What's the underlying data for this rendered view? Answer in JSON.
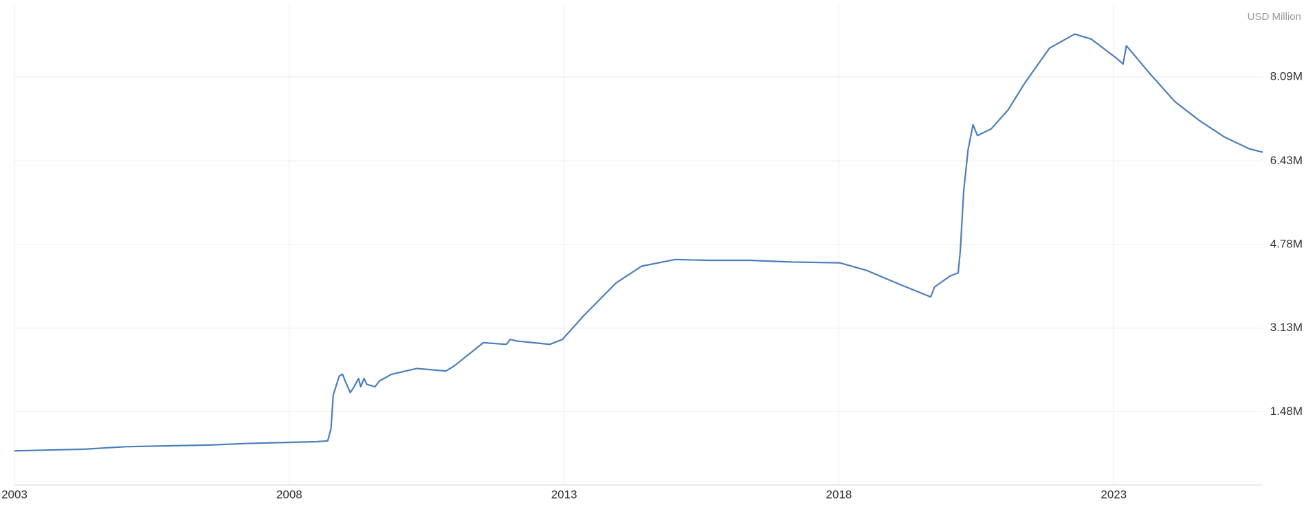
{
  "chart_data": {
    "type": "line",
    "y_unit": "USD Million",
    "x": [
      2003.0,
      2004.26,
      2005.02,
      2006.53,
      2007.29,
      2008.5,
      2008.7,
      2008.76,
      2008.8,
      2008.91,
      2008.97,
      2009.03,
      2009.11,
      2009.18,
      2009.26,
      2009.3,
      2009.36,
      2009.41,
      2009.56,
      2009.64,
      2009.86,
      2010.32,
      2010.85,
      2011.0,
      2011.53,
      2011.95,
      2012.02,
      2012.14,
      2012.44,
      2012.74,
      2012.97,
      2013.35,
      2013.95,
      2014.41,
      2015.02,
      2015.62,
      2016.38,
      2017.14,
      2018.02,
      2018.5,
      2019.11,
      2019.67,
      2019.74,
      2020.02,
      2020.17,
      2020.21,
      2020.27,
      2020.35,
      2020.44,
      2020.52,
      2020.77,
      2021.08,
      2021.38,
      2021.83,
      2022.29,
      2022.59,
      2023.05,
      2023.17,
      2023.23,
      2023.65,
      2024.11,
      2024.56,
      2025.02,
      2025.47,
      2025.71
    ],
    "series": [
      {
        "color": "#4a7ebb",
        "values": [
          708000,
          741000,
          790000,
          823000,
          856000,
          889000,
          905000,
          1152000,
          1808000,
          2186000,
          2219000,
          2055000,
          1858000,
          1973000,
          2137000,
          1973000,
          2137000,
          2022000,
          1973000,
          2087000,
          2219000,
          2334000,
          2284000,
          2383000,
          2843000,
          2810000,
          2908000,
          2876000,
          2843000,
          2810000,
          2908000,
          3368000,
          4025000,
          4353000,
          4484000,
          4468000,
          4468000,
          4435000,
          4419000,
          4271000,
          3992000,
          3746000,
          3943000,
          4156000,
          4222000,
          4682000,
          5831000,
          6652000,
          7144000,
          6931000,
          7062000,
          7440000,
          7965000,
          8655000,
          8934000,
          8835000,
          8458000,
          8343000,
          8704000,
          8162000,
          7604000,
          7226000,
          6898000,
          6668000,
          6602000
        ]
      }
    ],
    "xlim": [
      2003,
      2025.71
    ],
    "xticks": [
      2003,
      2008,
      2013,
      2018,
      2023
    ],
    "ylim": [
      35000,
      9525000
    ],
    "yticks": [
      {
        "value": 1480000,
        "label": "1.48M"
      },
      {
        "value": 3130000,
        "label": "3.13M"
      },
      {
        "value": 4780000,
        "label": "4.78M"
      },
      {
        "value": 6430000,
        "label": "6.43M"
      },
      {
        "value": 8090000,
        "label": "8.09M"
      }
    ],
    "grid": true
  }
}
